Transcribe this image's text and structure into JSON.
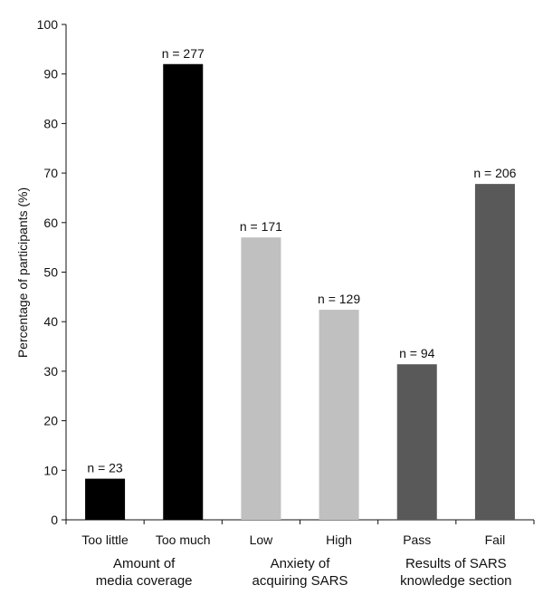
{
  "chart_data": {
    "type": "bar",
    "categories": [
      "Too little",
      "Too much",
      "Low",
      "High",
      "Pass",
      "Fail"
    ],
    "values": [
      8.3,
      92.0,
      57.0,
      42.4,
      31.4,
      67.8
    ],
    "bar_labels": [
      "n = 23",
      "n = 277",
      "n = 171",
      "n = 129",
      "n = 94",
      "n = 206"
    ],
    "bar_colors": [
      "#000000",
      "#000000",
      "#c0c0c0",
      "#c0c0c0",
      "#595959",
      "#595959"
    ],
    "groups": [
      {
        "label_lines": [
          "Amount of",
          "media coverage"
        ],
        "categories": [
          "Too little",
          "Too much"
        ]
      },
      {
        "label_lines": [
          "Anxiety of",
          "acquiring SARS"
        ],
        "categories": [
          "Low",
          "High"
        ]
      },
      {
        "label_lines": [
          "Results of SARS",
          "knowledge section"
        ],
        "categories": [
          "Pass",
          "Fail"
        ]
      }
    ],
    "ylabel": "Percentage of participants (%)",
    "xlabel": "",
    "title": "",
    "ylim": [
      0,
      100
    ],
    "yticks": [
      0,
      10,
      20,
      30,
      40,
      50,
      60,
      70,
      80,
      90,
      100
    ],
    "grid": false,
    "legend": "none"
  }
}
